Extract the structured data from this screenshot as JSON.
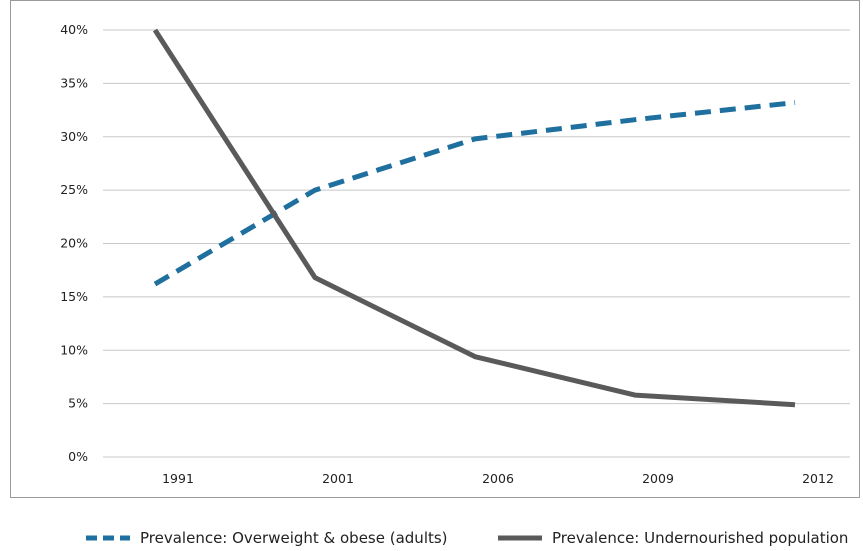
{
  "chart_data": {
    "type": "line",
    "categories": [
      "1991",
      "2001",
      "2006",
      "2009",
      "2012"
    ],
    "series": [
      {
        "name": "Prevalence: Overweight & obese (adults)",
        "values": [
          16.2,
          25.0,
          29.8,
          31.6,
          33.2
        ],
        "color": "#1f6f9f",
        "style": "dashed"
      },
      {
        "name": "Prevalence: Undernourished population",
        "values": [
          40.0,
          16.8,
          9.4,
          5.8,
          4.9
        ],
        "color": "#5a5a5a",
        "style": "solid"
      }
    ],
    "ylim": [
      0,
      40
    ],
    "yticks": [
      "0%",
      "5%",
      "10%",
      "15%",
      "20%",
      "25%",
      "30%",
      "35%",
      "40%"
    ],
    "grid": "horizontal",
    "legend_position": "bottom"
  }
}
